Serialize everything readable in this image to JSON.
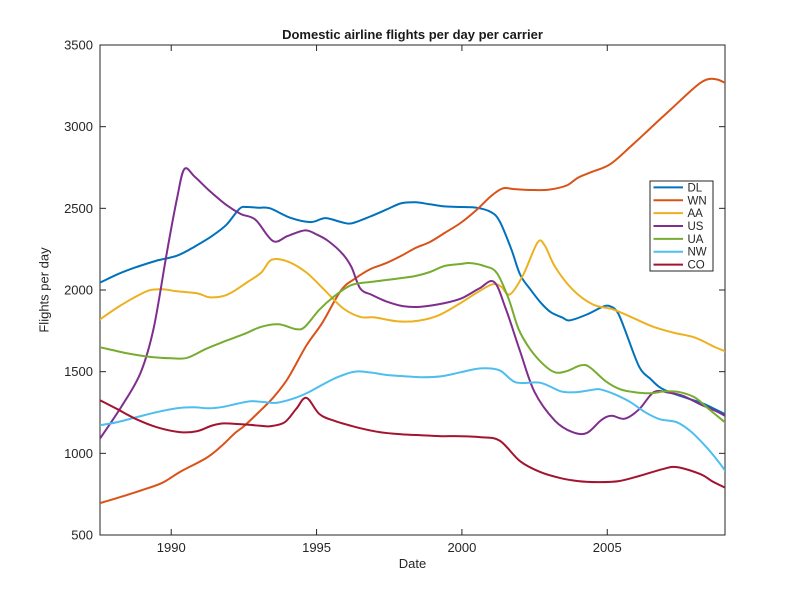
{
  "figure": {
    "background": "#FFFFFF",
    "axes_color": "#262626",
    "tick_label_color": "#262626"
  },
  "chart_data": {
    "type": "line",
    "title": "Domestic airline flights per day per carrier",
    "xlabel": "Date",
    "ylabel": "Flights per day",
    "xlim": [
      1987.55,
      2009.05
    ],
    "ylim": [
      500,
      3500
    ],
    "xticks": [
      1990,
      1995,
      2000,
      2005
    ],
    "yticks": [
      500,
      1000,
      1500,
      2000,
      2500,
      3000,
      3500
    ],
    "grid": false,
    "legend_position": "upper-right-inside",
    "series": [
      {
        "name": "DL",
        "color": "#0072BD",
        "points": [
          [
            1987.55,
            2045
          ],
          [
            1988.2,
            2100
          ],
          [
            1988.8,
            2140
          ],
          [
            1989.5,
            2180
          ],
          [
            1990.2,
            2210
          ],
          [
            1990.8,
            2265
          ],
          [
            1991.4,
            2330
          ],
          [
            1991.9,
            2400
          ],
          [
            1992.35,
            2498
          ],
          [
            1992.6,
            2508
          ],
          [
            1993.0,
            2504
          ],
          [
            1993.4,
            2500
          ],
          [
            1994.1,
            2442
          ],
          [
            1994.8,
            2416
          ],
          [
            1995.3,
            2440
          ],
          [
            1995.85,
            2416
          ],
          [
            1996.2,
            2408
          ],
          [
            1996.85,
            2450
          ],
          [
            1997.4,
            2492
          ],
          [
            1997.9,
            2530
          ],
          [
            1998.4,
            2537
          ],
          [
            1998.9,
            2525
          ],
          [
            1999.4,
            2512
          ],
          [
            2000.0,
            2508
          ],
          [
            2000.5,
            2504
          ],
          [
            2001.0,
            2477
          ],
          [
            2001.3,
            2420
          ],
          [
            2001.7,
            2250
          ],
          [
            2002.0,
            2095
          ],
          [
            2002.35,
            2005
          ],
          [
            2002.7,
            1925
          ],
          [
            2003.05,
            1865
          ],
          [
            2003.45,
            1832
          ],
          [
            2003.7,
            1814
          ],
          [
            2004.3,
            1850
          ],
          [
            2004.85,
            1898
          ],
          [
            2005.1,
            1900
          ],
          [
            2005.35,
            1865
          ],
          [
            2005.6,
            1760
          ],
          [
            2006.1,
            1530
          ],
          [
            2006.5,
            1453
          ],
          [
            2006.8,
            1405
          ],
          [
            2007.15,
            1374
          ],
          [
            2007.65,
            1343
          ],
          [
            2008.2,
            1312
          ],
          [
            2008.6,
            1280
          ],
          [
            2009.05,
            1240
          ]
        ]
      },
      {
        "name": "WN",
        "color": "#D95319",
        "points": [
          [
            1987.55,
            695
          ],
          [
            1988.3,
            735
          ],
          [
            1989.0,
            775
          ],
          [
            1989.7,
            820
          ],
          [
            1990.3,
            886
          ],
          [
            1991.2,
            971
          ],
          [
            1991.7,
            1040
          ],
          [
            1992.2,
            1125
          ],
          [
            1992.5,
            1166
          ],
          [
            1993.0,
            1250
          ],
          [
            1993.5,
            1340
          ],
          [
            1994.0,
            1455
          ],
          [
            1994.65,
            1660
          ],
          [
            1995.2,
            1800
          ],
          [
            1995.85,
            2000
          ],
          [
            1996.35,
            2073
          ],
          [
            1996.85,
            2128
          ],
          [
            1997.4,
            2165
          ],
          [
            1997.9,
            2208
          ],
          [
            1998.4,
            2257
          ],
          [
            1998.9,
            2294
          ],
          [
            1999.4,
            2349
          ],
          [
            1999.95,
            2410
          ],
          [
            2000.5,
            2490
          ],
          [
            2001.0,
            2575
          ],
          [
            2001.4,
            2622
          ],
          [
            2001.8,
            2618
          ],
          [
            2002.4,
            2612
          ],
          [
            2003.0,
            2615
          ],
          [
            2003.6,
            2640
          ],
          [
            2004.0,
            2688
          ],
          [
            2004.5,
            2725
          ],
          [
            2005.1,
            2770
          ],
          [
            2005.8,
            2878
          ],
          [
            2006.3,
            2960
          ],
          [
            2006.8,
            3043
          ],
          [
            2007.3,
            3125
          ],
          [
            2007.8,
            3208
          ],
          [
            2008.2,
            3268
          ],
          [
            2008.5,
            3292
          ],
          [
            2008.8,
            3288
          ],
          [
            2009.05,
            3268
          ]
        ]
      },
      {
        "name": "AA",
        "color": "#EDB120",
        "points": [
          [
            1987.55,
            1820
          ],
          [
            1988.15,
            1893
          ],
          [
            1988.8,
            1961
          ],
          [
            1989.25,
            1998
          ],
          [
            1989.7,
            2004
          ],
          [
            1990.2,
            1992
          ],
          [
            1990.9,
            1979
          ],
          [
            1991.35,
            1955
          ],
          [
            1991.95,
            1973
          ],
          [
            1992.65,
            2052
          ],
          [
            1993.1,
            2107
          ],
          [
            1993.45,
            2185
          ],
          [
            1994.0,
            2175
          ],
          [
            1994.65,
            2107
          ],
          [
            1995.3,
            1995
          ],
          [
            1995.9,
            1890
          ],
          [
            1996.5,
            1835
          ],
          [
            1997.0,
            1832
          ],
          [
            1997.8,
            1808
          ],
          [
            1998.5,
            1812
          ],
          [
            1999.2,
            1845
          ],
          [
            1999.95,
            1920
          ],
          [
            2000.5,
            1982
          ],
          [
            2001.05,
            2035
          ],
          [
            2001.35,
            2020
          ],
          [
            2001.65,
            1973
          ],
          [
            2002.1,
            2090
          ],
          [
            2002.6,
            2290
          ],
          [
            2002.85,
            2272
          ],
          [
            2003.2,
            2144
          ],
          [
            2003.8,
            2004
          ],
          [
            2004.5,
            1912
          ],
          [
            2005.2,
            1881
          ],
          [
            2005.85,
            1832
          ],
          [
            2006.55,
            1777
          ],
          [
            2007.25,
            1740
          ],
          [
            2008.0,
            1710
          ],
          [
            2008.65,
            1655
          ],
          [
            2009.05,
            1625
          ]
        ]
      },
      {
        "name": "US",
        "color": "#7E2F8E",
        "points": [
          [
            1987.55,
            1090
          ],
          [
            1988.3,
            1290
          ],
          [
            1988.95,
            1495
          ],
          [
            1989.4,
            1770
          ],
          [
            1989.85,
            2230
          ],
          [
            1990.2,
            2560
          ],
          [
            1990.45,
            2740
          ],
          [
            1990.8,
            2695
          ],
          [
            1991.3,
            2610
          ],
          [
            1991.9,
            2520
          ],
          [
            1992.4,
            2465
          ],
          [
            1992.9,
            2430
          ],
          [
            1993.5,
            2300
          ],
          [
            1994.0,
            2330
          ],
          [
            1994.6,
            2365
          ],
          [
            1995.0,
            2340
          ],
          [
            1995.4,
            2300
          ],
          [
            1995.9,
            2220
          ],
          [
            1996.2,
            2140
          ],
          [
            1996.5,
            2010
          ],
          [
            1996.9,
            1970
          ],
          [
            1997.4,
            1930
          ],
          [
            1998.0,
            1900
          ],
          [
            1998.6,
            1898
          ],
          [
            1999.4,
            1920
          ],
          [
            2000.0,
            1950
          ],
          [
            2000.6,
            2010
          ],
          [
            2001.1,
            2050
          ],
          [
            2001.5,
            1890
          ],
          [
            2002.0,
            1625
          ],
          [
            2002.5,
            1375
          ],
          [
            2003.2,
            1200
          ],
          [
            2003.8,
            1130
          ],
          [
            2004.3,
            1125
          ],
          [
            2004.8,
            1205
          ],
          [
            2005.15,
            1230
          ],
          [
            2005.6,
            1212
          ],
          [
            2006.1,
            1270
          ],
          [
            2006.6,
            1375
          ],
          [
            2007.1,
            1372
          ],
          [
            2007.6,
            1352
          ],
          [
            2008.2,
            1300
          ],
          [
            2008.7,
            1262
          ],
          [
            2009.05,
            1230
          ]
        ]
      },
      {
        "name": "UA",
        "color": "#77AC30",
        "points": [
          [
            1987.55,
            1650
          ],
          [
            1988.5,
            1612
          ],
          [
            1989.3,
            1590
          ],
          [
            1990.0,
            1582
          ],
          [
            1990.55,
            1585
          ],
          [
            1991.2,
            1640
          ],
          [
            1991.9,
            1690
          ],
          [
            1992.5,
            1730
          ],
          [
            1993.1,
            1775
          ],
          [
            1993.7,
            1790
          ],
          [
            1994.3,
            1760
          ],
          [
            1994.6,
            1775
          ],
          [
            1995.1,
            1880
          ],
          [
            1995.6,
            1960
          ],
          [
            1996.2,
            2030
          ],
          [
            1996.85,
            2049
          ],
          [
            1997.4,
            2061
          ],
          [
            1997.9,
            2073
          ],
          [
            1998.4,
            2086
          ],
          [
            1998.9,
            2110
          ],
          [
            1999.4,
            2147
          ],
          [
            1999.95,
            2159
          ],
          [
            2000.3,
            2165
          ],
          [
            2000.8,
            2145
          ],
          [
            2001.2,
            2105
          ],
          [
            2001.6,
            1950
          ],
          [
            2001.95,
            1760
          ],
          [
            2002.35,
            1637
          ],
          [
            2002.8,
            1545
          ],
          [
            2003.2,
            1496
          ],
          [
            2003.6,
            1503
          ],
          [
            2004.1,
            1539
          ],
          [
            2004.4,
            1527
          ],
          [
            2004.95,
            1441
          ],
          [
            2005.45,
            1392
          ],
          [
            2005.95,
            1374
          ],
          [
            2006.5,
            1368
          ],
          [
            2007.0,
            1380
          ],
          [
            2007.5,
            1374
          ],
          [
            2008.0,
            1343
          ],
          [
            2008.5,
            1270
          ],
          [
            2009.05,
            1190
          ]
        ]
      },
      {
        "name": "NW",
        "color": "#4DBEEE",
        "points": [
          [
            1987.55,
            1172
          ],
          [
            1988.15,
            1191
          ],
          [
            1988.8,
            1221
          ],
          [
            1989.5,
            1252
          ],
          [
            1990.2,
            1276
          ],
          [
            1990.75,
            1282
          ],
          [
            1991.3,
            1276
          ],
          [
            1991.8,
            1285
          ],
          [
            1992.3,
            1305
          ],
          [
            1992.75,
            1319
          ],
          [
            1993.3,
            1312
          ],
          [
            1993.65,
            1310
          ],
          [
            1994.2,
            1335
          ],
          [
            1994.7,
            1372
          ],
          [
            1995.2,
            1420
          ],
          [
            1995.7,
            1465
          ],
          [
            1996.3,
            1500
          ],
          [
            1996.85,
            1495
          ],
          [
            1997.4,
            1480
          ],
          [
            1998.0,
            1472
          ],
          [
            1998.6,
            1466
          ],
          [
            1999.3,
            1472
          ],
          [
            1999.95,
            1496
          ],
          [
            2000.65,
            1520
          ],
          [
            2001.3,
            1508
          ],
          [
            2001.85,
            1435
          ],
          [
            2002.7,
            1432
          ],
          [
            2003.4,
            1380
          ],
          [
            2003.9,
            1374
          ],
          [
            2004.4,
            1386
          ],
          [
            2004.75,
            1392
          ],
          [
            2005.25,
            1362
          ],
          [
            2005.8,
            1313
          ],
          [
            2006.3,
            1252
          ],
          [
            2006.8,
            1209
          ],
          [
            2007.4,
            1190
          ],
          [
            2007.9,
            1130
          ],
          [
            2008.4,
            1040
          ],
          [
            2008.8,
            955
          ],
          [
            2009.05,
            895
          ]
        ]
      },
      {
        "name": "CO",
        "color": "#A2142F",
        "points": [
          [
            1987.55,
            1325
          ],
          [
            1988.15,
            1270
          ],
          [
            1988.8,
            1209
          ],
          [
            1989.5,
            1160
          ],
          [
            1990.3,
            1130
          ],
          [
            1990.9,
            1136
          ],
          [
            1991.4,
            1170
          ],
          [
            1991.8,
            1183
          ],
          [
            1992.4,
            1178
          ],
          [
            1993.0,
            1170
          ],
          [
            1993.4,
            1166
          ],
          [
            1993.9,
            1190
          ],
          [
            1994.3,
            1272
          ],
          [
            1994.65,
            1340
          ],
          [
            1995.1,
            1240
          ],
          [
            1995.65,
            1197
          ],
          [
            1996.5,
            1154
          ],
          [
            1997.2,
            1129
          ],
          [
            1997.9,
            1117
          ],
          [
            1998.6,
            1111
          ],
          [
            1999.3,
            1105
          ],
          [
            1999.95,
            1105
          ],
          [
            2000.65,
            1099
          ],
          [
            2001.3,
            1078
          ],
          [
            2002.0,
            952
          ],
          [
            2002.7,
            885
          ],
          [
            2003.4,
            848
          ],
          [
            2004.0,
            830
          ],
          [
            2004.7,
            824
          ],
          [
            2005.4,
            830
          ],
          [
            2006.1,
            861
          ],
          [
            2006.9,
            903
          ],
          [
            2007.4,
            916
          ],
          [
            2008.2,
            873
          ],
          [
            2008.6,
            830
          ],
          [
            2009.05,
            790
          ]
        ]
      }
    ]
  }
}
